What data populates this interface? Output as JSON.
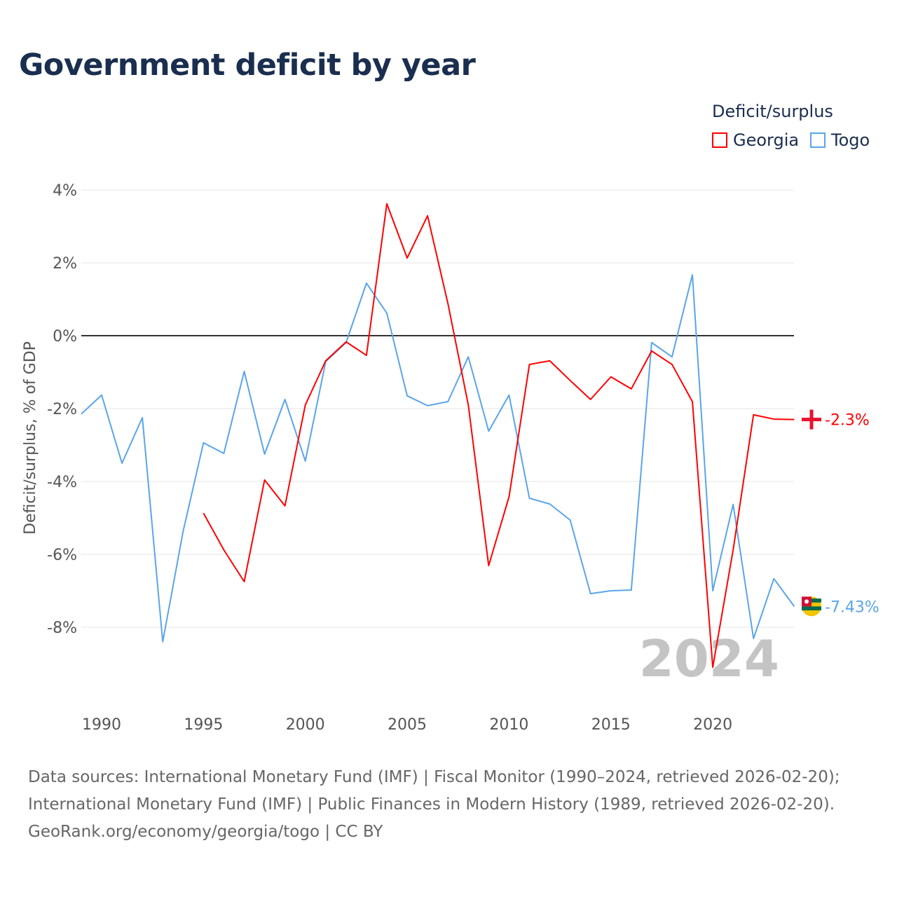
{
  "title": "Government deficit by year",
  "legend": {
    "title": "Deficit/surplus",
    "items": [
      {
        "name": "Georgia",
        "color": "#ff0000"
      },
      {
        "name": "Togo",
        "color": "#5aa5e8"
      }
    ]
  },
  "year_watermark": "2024",
  "end_labels": {
    "georgia": "-2.3%",
    "togo": "-7.43%"
  },
  "sources": [
    "Data sources: International Monetary Fund (IMF) | Fiscal Monitor (1990–2024, retrieved 2026-02-20);",
    "International Monetary Fund (IMF) | Public Finances in Modern History (1989, retrieved 2026-02-20).",
    "GeoRank.org/economy/georgia/togo | CC BY"
  ],
  "chart_data": {
    "type": "line",
    "title": "Government deficit by year",
    "xlabel": "",
    "ylabel": "Deficit/surplus, % of GDP",
    "xlim": [
      1989,
      2024
    ],
    "ylim": [
      -10,
      4
    ],
    "xticks": [
      1990,
      1995,
      2000,
      2005,
      2010,
      2015,
      2020
    ],
    "yticks": [
      4,
      2,
      0,
      -2,
      -4,
      -6,
      -8
    ],
    "ytick_labels": [
      "4%",
      "2%",
      "0%",
      "-2%",
      "-4%",
      "-6%",
      "-8%"
    ],
    "series": [
      {
        "name": "Georgia",
        "color": "#ff0000",
        "x": [
          1995,
          1996,
          1997,
          1998,
          1999,
          2000,
          2001,
          2002,
          2003,
          2004,
          2005,
          2006,
          2007,
          2008,
          2009,
          2010,
          2011,
          2012,
          2013,
          2014,
          2015,
          2016,
          2017,
          2018,
          2019,
          2020,
          2021,
          2022,
          2023,
          2024
        ],
        "values": [
          -4.87,
          -5.88,
          -6.75,
          -3.96,
          -4.67,
          -1.9,
          -0.69,
          -0.17,
          -0.54,
          3.62,
          2.13,
          3.29,
          0.88,
          -1.9,
          -6.31,
          -4.42,
          -0.79,
          -0.69,
          -1.23,
          -1.75,
          -1.13,
          -1.46,
          -0.42,
          -0.79,
          -1.81,
          -9.1,
          -5.88,
          -2.17,
          -2.29,
          -2.3
        ]
      },
      {
        "name": "Togo",
        "color": "#5aa5e8",
        "x": [
          1989,
          1990,
          1991,
          1992,
          1993,
          1994,
          1995,
          1996,
          1997,
          1998,
          1999,
          2000,
          2001,
          2002,
          2003,
          2004,
          2005,
          2006,
          2007,
          2008,
          2009,
          2010,
          2011,
          2012,
          2013,
          2014,
          2015,
          2016,
          2017,
          2018,
          2019,
          2020,
          2021,
          2022,
          2023,
          2024
        ],
        "values": [
          -2.15,
          -1.63,
          -3.5,
          -2.25,
          -8.4,
          -5.37,
          -2.94,
          -3.23,
          -0.98,
          -3.25,
          -1.75,
          -3.44,
          -0.71,
          -0.19,
          1.44,
          0.62,
          -1.65,
          -1.92,
          -1.81,
          -0.58,
          -2.62,
          -1.63,
          -4.46,
          -4.62,
          -5.06,
          -7.08,
          -7.0,
          -6.98,
          -0.19,
          -0.58,
          1.67,
          -7.0,
          -4.63,
          -8.31,
          -6.67,
          -7.43
        ]
      }
    ]
  }
}
